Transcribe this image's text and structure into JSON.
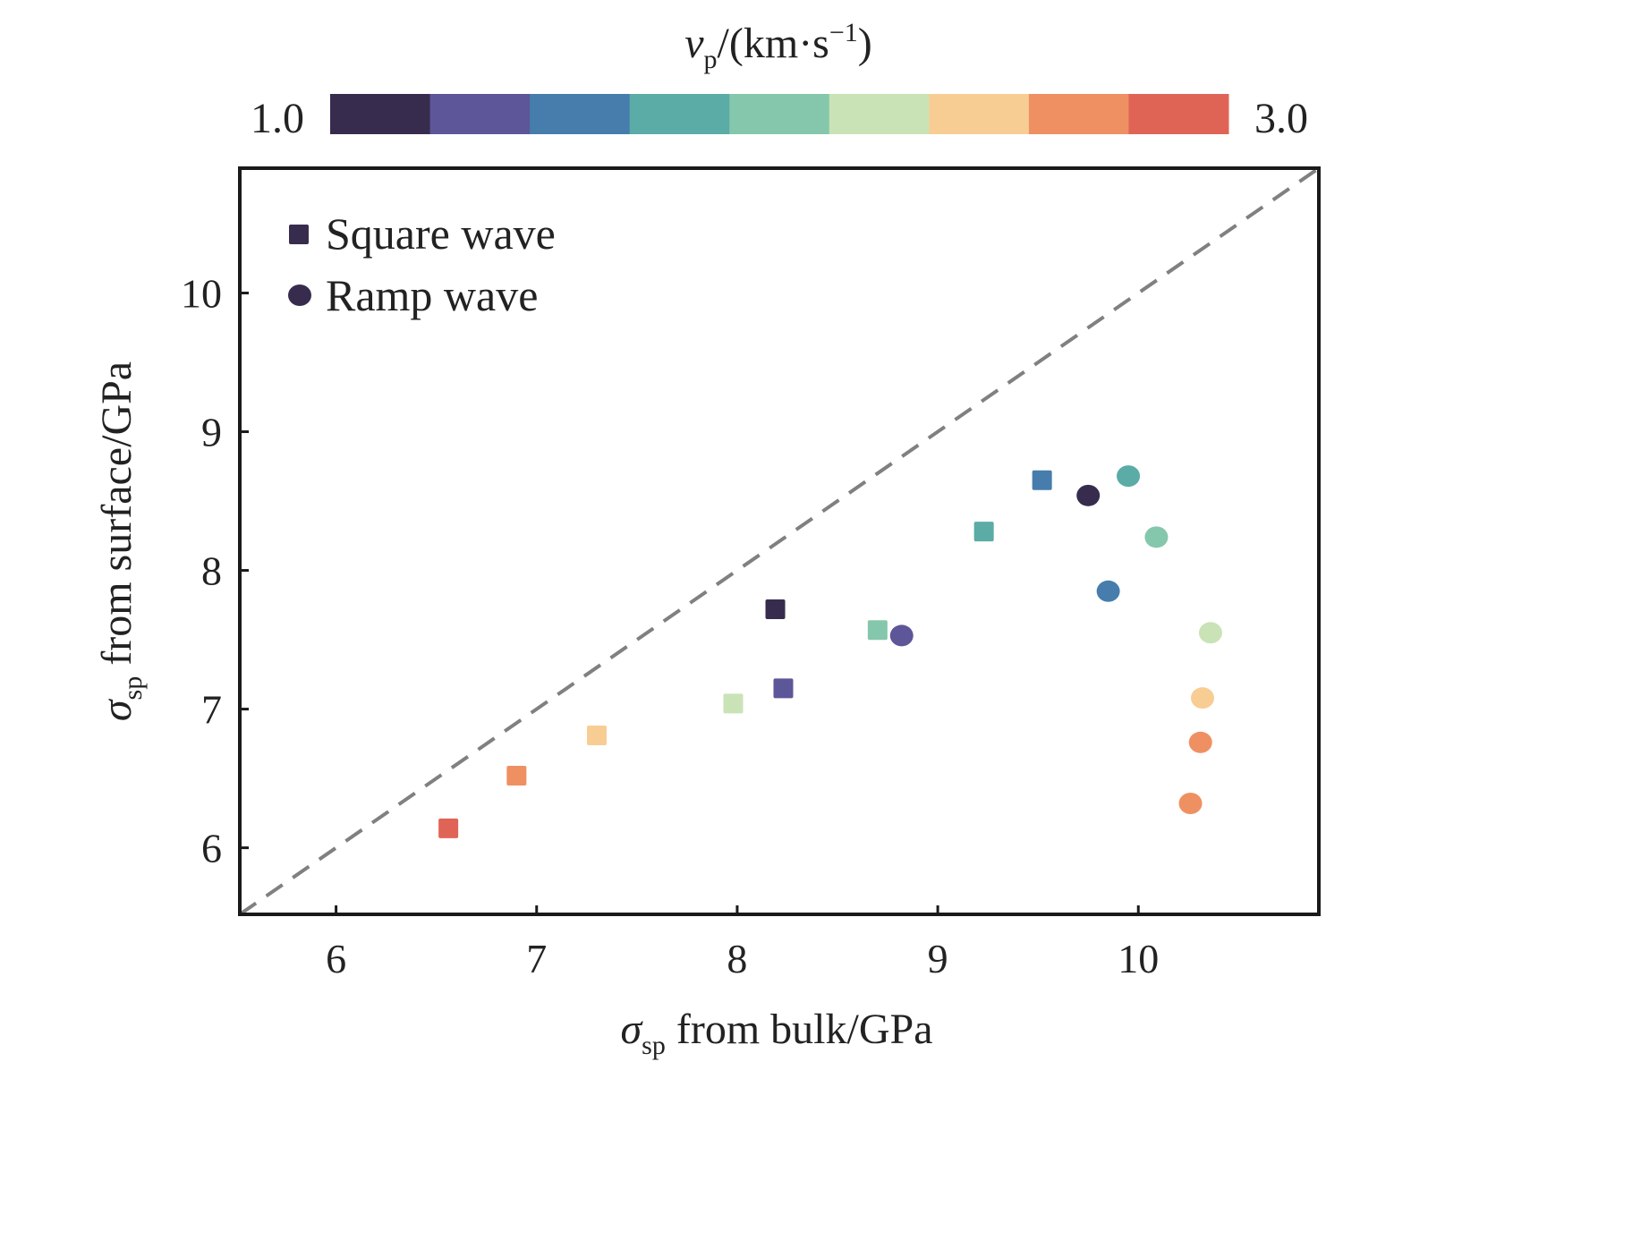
{
  "chart_data": {
    "type": "scatter",
    "title": "",
    "xlabel": {
      "symbol": "σ",
      "sub": "sp",
      "text": " from bulk/GPa"
    },
    "ylabel": {
      "symbol": "σ",
      "sub": "sp",
      "text": " from surface/GPa"
    },
    "xlim": [
      5.52,
      10.9
    ],
    "ylim": [
      5.52,
      10.9
    ],
    "xticks": [
      6,
      7,
      8,
      9,
      10
    ],
    "yticks": [
      6,
      7,
      8,
      9,
      10
    ],
    "grid": false,
    "reference_line": {
      "type": "y=x",
      "style": "dashed",
      "color": "#808080"
    },
    "legend": {
      "placement": "top-left",
      "entries": [
        {
          "label": "Square wave",
          "marker": "square",
          "color": "#382C4E"
        },
        {
          "label": "Ramp wave",
          "marker": "circle",
          "color": "#382C4E"
        }
      ]
    },
    "colorbar": {
      "title": {
        "symbol": "v",
        "sub": "p",
        "text": "/(km·s",
        "sup": "−1",
        "close": ")"
      },
      "min_label": "1.0",
      "max_label": "3.0",
      "min": 1.0,
      "max": 3.0,
      "colors": [
        "#382C4E",
        "#5D5698",
        "#467DAC",
        "#5BABA6",
        "#85C7AC",
        "#C9E3B6",
        "#F7CD94",
        "#EF9063",
        "#E06456"
      ]
    },
    "series": [
      {
        "name": "Square wave",
        "marker": "square",
        "points": [
          {
            "x": 6.56,
            "y": 6.14,
            "color": "#E06456"
          },
          {
            "x": 6.9,
            "y": 6.52,
            "color": "#EF9063"
          },
          {
            "x": 7.3,
            "y": 6.81,
            "color": "#F7CD94"
          },
          {
            "x": 7.98,
            "y": 7.04,
            "color": "#C9E3B6"
          },
          {
            "x": 8.23,
            "y": 7.15,
            "color": "#5D5698"
          },
          {
            "x": 8.19,
            "y": 7.72,
            "color": "#382C4E"
          },
          {
            "x": 8.7,
            "y": 7.57,
            "color": "#85C7AC"
          },
          {
            "x": 9.23,
            "y": 8.28,
            "color": "#5BABA6"
          },
          {
            "x": 9.52,
            "y": 8.65,
            "color": "#467DAC"
          }
        ]
      },
      {
        "name": "Ramp wave",
        "marker": "circle",
        "points": [
          {
            "x": 8.82,
            "y": 7.53,
            "color": "#5D5698"
          },
          {
            "x": 9.75,
            "y": 8.54,
            "color": "#382C4E"
          },
          {
            "x": 9.95,
            "y": 8.68,
            "color": "#5BABA6"
          },
          {
            "x": 10.09,
            "y": 8.24,
            "color": "#85C7AC"
          },
          {
            "x": 9.85,
            "y": 7.85,
            "color": "#467DAC"
          },
          {
            "x": 10.36,
            "y": 7.55,
            "color": "#C9E3B6"
          },
          {
            "x": 10.32,
            "y": 7.08,
            "color": "#F7CD94"
          },
          {
            "x": 10.31,
            "y": 6.76,
            "color": "#EF9063"
          },
          {
            "x": 10.26,
            "y": 6.32,
            "color": "#EF9063"
          }
        ]
      }
    ]
  }
}
